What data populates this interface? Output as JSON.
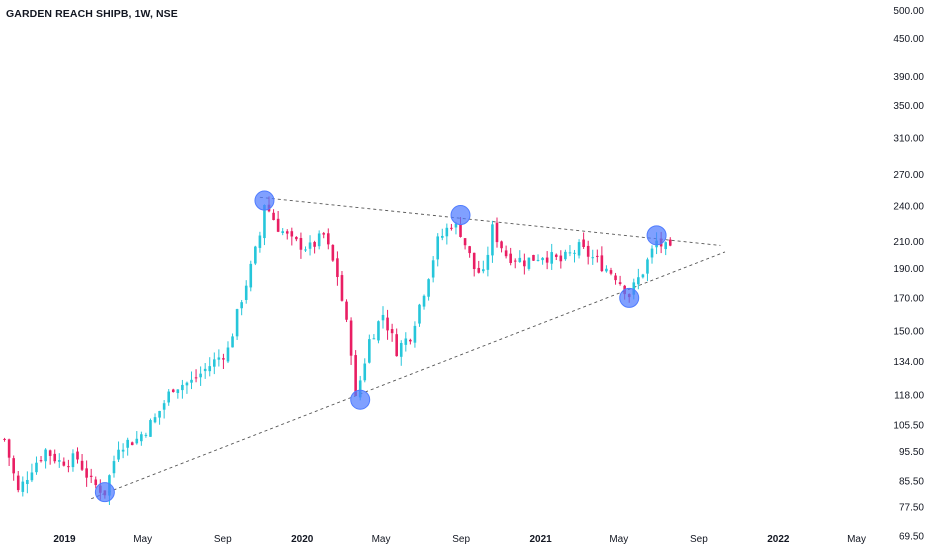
{
  "chart_title": "GARDEN REACH SHIPB, 1W, NSE",
  "colors": {
    "up": "#26c6da",
    "down": "#e91e63",
    "marker": "#4f7cff",
    "line": "#555555",
    "text": "#131722"
  },
  "chart_data": {
    "type": "candlestick",
    "title": "GARDEN REACH SHIPB, 1W, NSE",
    "y_scale": "log",
    "ylim": [
      66,
      520
    ],
    "xlim": [
      "2018-09-24",
      "2022-06-06"
    ],
    "y_ticks": [
      "69.50",
      "77.50",
      "85.50",
      "95.50",
      "105.50",
      "118.00",
      "134.00",
      "150.00",
      "170.00",
      "190.00",
      "210.00",
      "240.00",
      "270.00",
      "310.00",
      "350.00",
      "390.00",
      "450.00",
      "500.00"
    ],
    "x_ticks": [
      {
        "label": "2019",
        "date": "2019-01-01",
        "bold": true
      },
      {
        "label": "May",
        "date": "2019-05-01",
        "bold": false
      },
      {
        "label": "Sep",
        "date": "2019-09-01",
        "bold": false
      },
      {
        "label": "2020",
        "date": "2020-01-01",
        "bold": true
      },
      {
        "label": "May",
        "date": "2020-05-01",
        "bold": false
      },
      {
        "label": "Sep",
        "date": "2020-09-01",
        "bold": false
      },
      {
        "label": "2021",
        "date": "2021-01-01",
        "bold": true
      },
      {
        "label": "May",
        "date": "2021-05-01",
        "bold": false
      },
      {
        "label": "Sep",
        "date": "2021-09-01",
        "bold": false
      },
      {
        "label": "2022",
        "date": "2022-01-01",
        "bold": true
      },
      {
        "label": "May",
        "date": "2022-05-01",
        "bold": false
      }
    ],
    "close_path": [
      [
        "2018-10-01",
        100
      ],
      [
        "2018-10-22",
        82
      ],
      [
        "2018-11-12",
        90
      ],
      [
        "2018-12-03",
        96
      ],
      [
        "2018-12-24",
        92
      ],
      [
        "2019-01-21",
        93
      ],
      [
        "2019-02-11",
        85
      ],
      [
        "2019-03-04",
        82
      ],
      [
        "2019-03-25",
        98
      ],
      [
        "2019-04-22",
        100
      ],
      [
        "2019-05-20",
        108
      ],
      [
        "2019-06-17",
        122
      ],
      [
        "2019-07-15",
        124
      ],
      [
        "2019-08-12",
        132
      ],
      [
        "2019-09-09",
        140
      ],
      [
        "2019-09-30",
        170
      ],
      [
        "2019-10-14",
        190
      ],
      [
        "2019-10-28",
        215
      ],
      [
        "2019-11-04",
        243
      ],
      [
        "2019-11-25",
        222
      ],
      [
        "2019-12-16",
        210
      ],
      [
        "2020-01-13",
        205
      ],
      [
        "2020-02-03",
        215
      ],
      [
        "2020-02-24",
        185
      ],
      [
        "2020-03-16",
        140
      ],
      [
        "2020-03-23",
        116
      ],
      [
        "2020-04-13",
        145
      ],
      [
        "2020-05-04",
        160
      ],
      [
        "2020-05-25",
        140
      ],
      [
        "2020-06-15",
        148
      ],
      [
        "2020-07-06",
        175
      ],
      [
        "2020-07-27",
        210
      ],
      [
        "2020-08-17",
        225
      ],
      [
        "2020-08-31",
        218
      ],
      [
        "2020-09-21",
        190
      ],
      [
        "2020-10-05",
        185
      ],
      [
        "2020-10-19",
        220
      ],
      [
        "2020-11-09",
        200
      ],
      [
        "2020-12-07",
        195
      ],
      [
        "2021-01-04",
        200
      ],
      [
        "2021-02-01",
        195
      ],
      [
        "2021-03-01",
        205
      ],
      [
        "2021-03-29",
        195
      ],
      [
        "2021-04-26",
        185
      ],
      [
        "2021-05-17",
        172
      ],
      [
        "2021-06-07",
        188
      ],
      [
        "2021-06-28",
        210
      ],
      [
        "2021-07-19",
        202
      ]
    ],
    "trendlines": [
      {
        "name": "upper",
        "points": [
          [
            "2019-10-28",
            248
          ],
          [
            "2021-10-04",
            207
          ]
        ]
      },
      {
        "name": "lower",
        "points": [
          [
            "2019-02-11",
            80
          ],
          [
            "2021-10-11",
            202
          ]
        ]
      }
    ],
    "markers": [
      {
        "date": "2019-03-04",
        "price": 82
      },
      {
        "date": "2019-11-04",
        "price": 245
      },
      {
        "date": "2020-03-30",
        "price": 116
      },
      {
        "date": "2020-08-31",
        "price": 232
      },
      {
        "date": "2021-05-17",
        "price": 170
      },
      {
        "date": "2021-06-28",
        "price": 215
      }
    ]
  }
}
